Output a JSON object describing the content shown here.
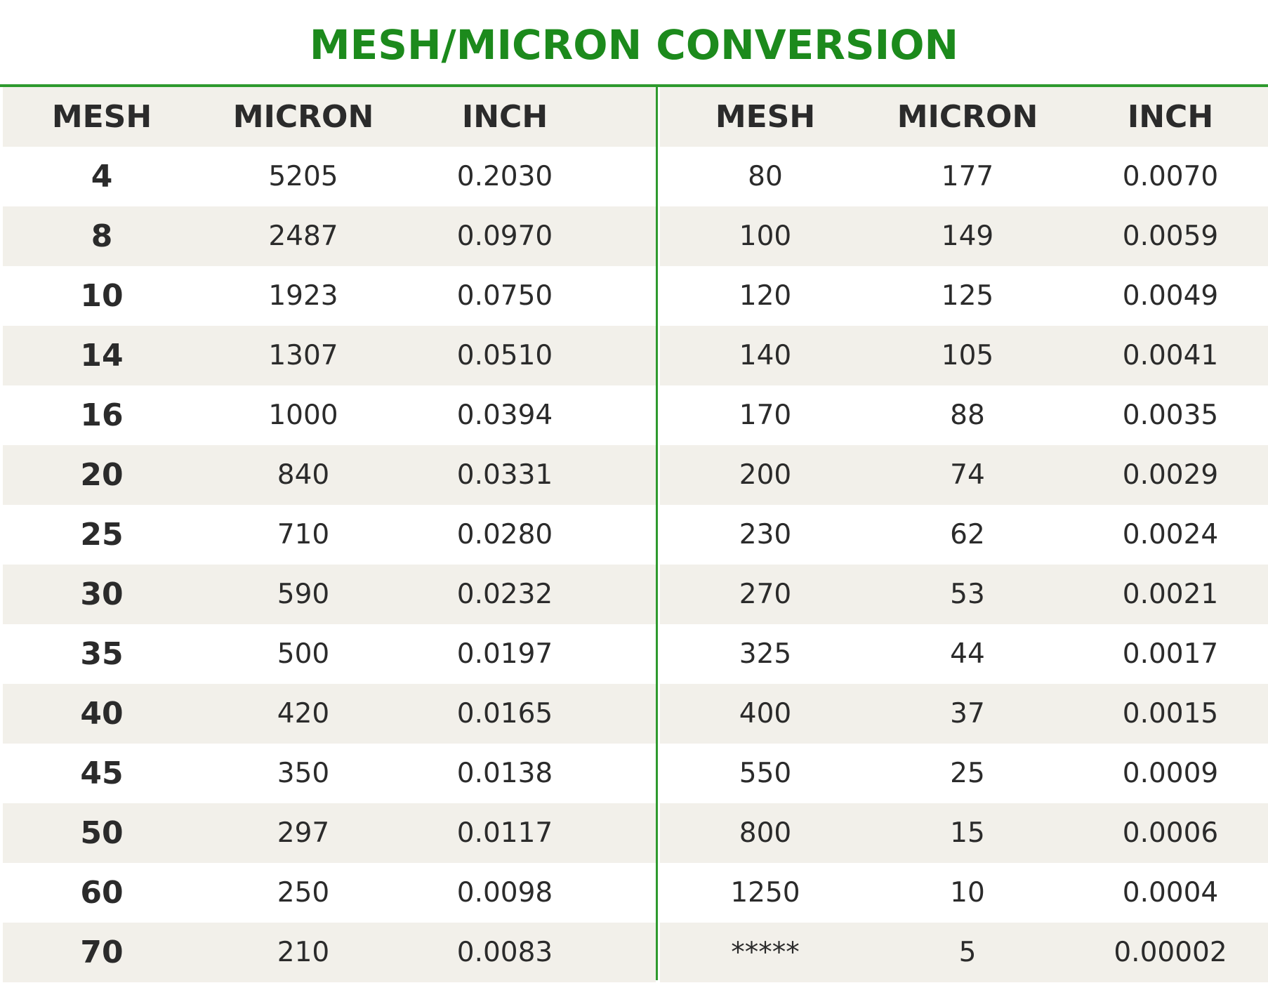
{
  "title": "MESH/MICRON CONVERSION",
  "colors": {
    "accent": "#1c8a1c",
    "rule": "#2e9a2e",
    "shaded_row": "#f2f0ea",
    "text": "#2b2b2b"
  },
  "chart_data": {
    "type": "table",
    "title": "MESH/MICRON CONVERSION",
    "columns": [
      "MESH",
      "MICRON",
      "INCH"
    ],
    "tables": [
      {
        "headers": [
          "MESH",
          "MICRON",
          "INCH"
        ],
        "rows": [
          [
            "4",
            "5205",
            "0.2030"
          ],
          [
            "8",
            "2487",
            "0.0970"
          ],
          [
            "10",
            "1923",
            "0.0750"
          ],
          [
            "14",
            "1307",
            "0.0510"
          ],
          [
            "16",
            "1000",
            "0.0394"
          ],
          [
            "20",
            "840",
            "0.0331"
          ],
          [
            "25",
            "710",
            "0.0280"
          ],
          [
            "30",
            "590",
            "0.0232"
          ],
          [
            "35",
            "500",
            "0.0197"
          ],
          [
            "40",
            "420",
            "0.0165"
          ],
          [
            "45",
            "350",
            "0.0138"
          ],
          [
            "50",
            "297",
            "0.0117"
          ],
          [
            "60",
            "250",
            "0.0098"
          ],
          [
            "70",
            "210",
            "0.0083"
          ]
        ]
      },
      {
        "headers": [
          "MESH",
          "MICRON",
          "INCH"
        ],
        "rows": [
          [
            "80",
            "177",
            "0.0070"
          ],
          [
            "100",
            "149",
            "0.0059"
          ],
          [
            "120",
            "125",
            "0.0049"
          ],
          [
            "140",
            "105",
            "0.0041"
          ],
          [
            "170",
            "88",
            "0.0035"
          ],
          [
            "200",
            "74",
            "0.0029"
          ],
          [
            "230",
            "62",
            "0.0024"
          ],
          [
            "270",
            "53",
            "0.0021"
          ],
          [
            "325",
            "44",
            "0.0017"
          ],
          [
            "400",
            "37",
            "0.0015"
          ],
          [
            "550",
            "25",
            "0.0009"
          ],
          [
            "800",
            "15",
            "0.0006"
          ],
          [
            "1250",
            "10",
            "0.0004"
          ],
          [
            "*****",
            "5",
            "0.00002"
          ]
        ]
      }
    ]
  }
}
